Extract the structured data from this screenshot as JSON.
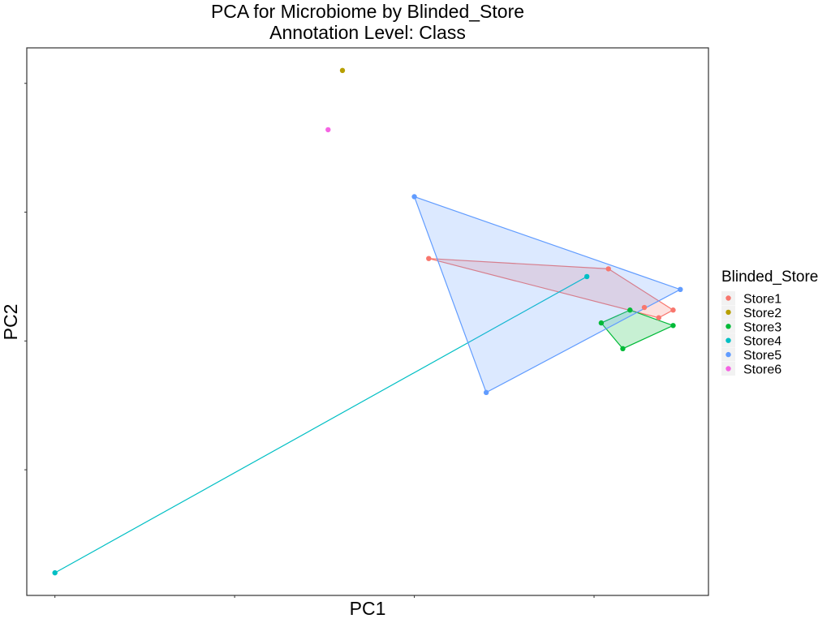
{
  "chart_data": {
    "type": "scatter",
    "title": "PCA for Microbiome by Blinded_Store",
    "subtitle": "Annotation Level: Class",
    "xlabel": "PC1",
    "ylabel": "PC2",
    "legend": {
      "title": "Blinded_Store",
      "placement": "right"
    },
    "grid": false,
    "tick_labels_shown": false,
    "hull": true,
    "series": [
      {
        "name": "Store1",
        "color": "#F8766D",
        "points": [
          [
            0.52,
            0.32
          ],
          [
            0.77,
            0.28
          ],
          [
            0.82,
            0.13
          ],
          [
            0.84,
            0.09
          ],
          [
            0.86,
            0.12
          ]
        ]
      },
      {
        "name": "Store2",
        "color": "#B79F00",
        "points": [
          [
            0.4,
            1.05
          ]
        ]
      },
      {
        "name": "Store3",
        "color": "#00BA38",
        "points": [
          [
            0.76,
            0.07
          ],
          [
            0.8,
            0.12
          ],
          [
            0.79,
            -0.03
          ],
          [
            0.86,
            0.06
          ]
        ]
      },
      {
        "name": "Store4",
        "color": "#00BFC4",
        "points": [
          [
            0.74,
            0.25
          ],
          [
            0.0,
            -0.9
          ]
        ]
      },
      {
        "name": "Store5",
        "color": "#619CFF",
        "points": [
          [
            0.5,
            0.56
          ],
          [
            0.6,
            -0.2
          ],
          [
            0.87,
            0.2
          ]
        ]
      },
      {
        "name": "Store6",
        "color": "#F564E3",
        "points": [
          [
            0.38,
            0.82
          ]
        ]
      }
    ]
  }
}
